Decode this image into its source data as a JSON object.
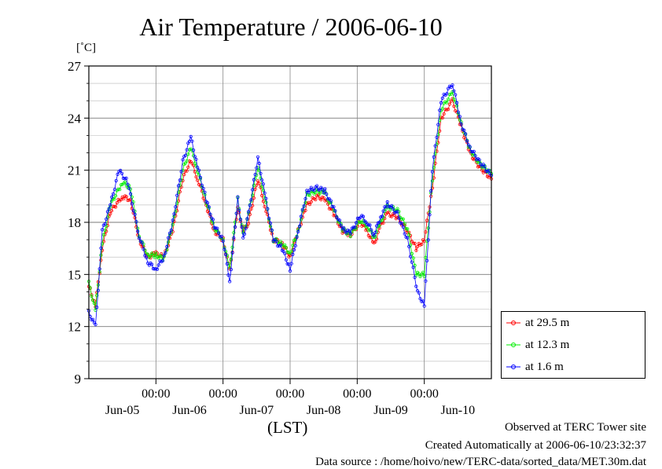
{
  "title": "Air Temperature / 2006-06-10",
  "footer": {
    "observed": "Observed at TERC Tower site",
    "created": "Created Automatically at 2006-06-10/23:32:37",
    "source": "Data source : /home/hoivo/new/TERC-data/sorted_data/MET.30m.dat"
  },
  "chart_data": {
    "type": "line",
    "title": "Air Temperature / 2006-06-10",
    "ylabel": "[˚C]",
    "xlabel": "(LST)",
    "ylim": [
      9,
      27
    ],
    "y_ticks": [
      9,
      12,
      15,
      18,
      21,
      24,
      27
    ],
    "xlim": [
      0,
      6
    ],
    "x_unit": "days since 2006-06-04 12:00 LST",
    "x_time_ticks": [
      {
        "x": 1,
        "label": "00:00"
      },
      {
        "x": 2,
        "label": "00:00"
      },
      {
        "x": 3,
        "label": "00:00"
      },
      {
        "x": 4,
        "label": "00:00"
      },
      {
        "x": 5,
        "label": "00:00"
      }
    ],
    "x_date_labels": [
      {
        "x": 0.5,
        "label": "Jun-05"
      },
      {
        "x": 1.5,
        "label": "Jun-06"
      },
      {
        "x": 2.5,
        "label": "Jun-07"
      },
      {
        "x": 3.5,
        "label": "Jun-08"
      },
      {
        "x": 4.5,
        "label": "Jun-09"
      },
      {
        "x": 5.5,
        "label": "Jun-10"
      }
    ],
    "grid": true,
    "legend_position": "right",
    "series": [
      {
        "name": "at 29.5 m",
        "color": "#ff0000",
        "points": [
          [
            0.0,
            14.3
          ],
          [
            0.1,
            13.2
          ],
          [
            0.2,
            16.5
          ],
          [
            0.32,
            18.6
          ],
          [
            0.5,
            19.5
          ],
          [
            0.62,
            19.3
          ],
          [
            0.75,
            17.0
          ],
          [
            0.88,
            16.0
          ],
          [
            1.0,
            16.2
          ],
          [
            1.12,
            16.0
          ],
          [
            1.25,
            17.5
          ],
          [
            1.4,
            20.5
          ],
          [
            1.52,
            21.6
          ],
          [
            1.62,
            20.5
          ],
          [
            1.75,
            19.0
          ],
          [
            1.87,
            17.5
          ],
          [
            2.0,
            17.0
          ],
          [
            2.1,
            15.2
          ],
          [
            2.22,
            18.8
          ],
          [
            2.3,
            17.5
          ],
          [
            2.38,
            18.0
          ],
          [
            2.52,
            20.5
          ],
          [
            2.62,
            19.0
          ],
          [
            2.75,
            17.0
          ],
          [
            2.88,
            16.8
          ],
          [
            3.0,
            16.0
          ],
          [
            3.12,
            17.5
          ],
          [
            3.25,
            19.0
          ],
          [
            3.4,
            19.5
          ],
          [
            3.52,
            19.3
          ],
          [
            3.65,
            18.5
          ],
          [
            3.78,
            17.5
          ],
          [
            3.9,
            17.3
          ],
          [
            4.05,
            18.0
          ],
          [
            4.15,
            17.5
          ],
          [
            4.25,
            16.7
          ],
          [
            4.35,
            17.8
          ],
          [
            4.45,
            18.5
          ],
          [
            4.6,
            18.3
          ],
          [
            4.75,
            17.5
          ],
          [
            4.88,
            16.5
          ],
          [
            5.0,
            17.0
          ],
          [
            5.12,
            20.0
          ],
          [
            5.25,
            24.0
          ],
          [
            5.42,
            25.0
          ],
          [
            5.55,
            23.5
          ],
          [
            5.68,
            22.0
          ],
          [
            5.82,
            21.2
          ],
          [
            6.0,
            20.5
          ]
        ]
      },
      {
        "name": "at 12.3 m",
        "color": "#00ee00",
        "points": [
          [
            0.0,
            14.5
          ],
          [
            0.1,
            12.9
          ],
          [
            0.2,
            16.8
          ],
          [
            0.32,
            19.0
          ],
          [
            0.5,
            20.3
          ],
          [
            0.62,
            20.0
          ],
          [
            0.75,
            17.2
          ],
          [
            0.88,
            16.1
          ],
          [
            1.0,
            16.1
          ],
          [
            1.12,
            15.9
          ],
          [
            1.25,
            17.8
          ],
          [
            1.4,
            21.0
          ],
          [
            1.52,
            22.3
          ],
          [
            1.62,
            21.0
          ],
          [
            1.75,
            19.2
          ],
          [
            1.87,
            17.7
          ],
          [
            2.0,
            17.0
          ],
          [
            2.1,
            15.3
          ],
          [
            2.22,
            19.3
          ],
          [
            2.3,
            17.3
          ],
          [
            2.38,
            18.5
          ],
          [
            2.52,
            21.2
          ],
          [
            2.62,
            19.5
          ],
          [
            2.75,
            17.0
          ],
          [
            2.88,
            16.8
          ],
          [
            3.0,
            16.2
          ],
          [
            3.12,
            17.5
          ],
          [
            3.25,
            19.6
          ],
          [
            3.4,
            19.8
          ],
          [
            3.52,
            19.7
          ],
          [
            3.65,
            18.7
          ],
          [
            3.78,
            17.6
          ],
          [
            3.9,
            17.3
          ],
          [
            4.05,
            18.1
          ],
          [
            4.15,
            17.8
          ],
          [
            4.25,
            17.1
          ],
          [
            4.35,
            18.0
          ],
          [
            4.45,
            18.9
          ],
          [
            4.6,
            18.7
          ],
          [
            4.75,
            17.6
          ],
          [
            4.88,
            15.0
          ],
          [
            5.0,
            15.0
          ],
          [
            5.12,
            20.5
          ],
          [
            5.25,
            24.5
          ],
          [
            5.42,
            25.5
          ],
          [
            5.55,
            23.7
          ],
          [
            5.68,
            22.2
          ],
          [
            5.82,
            21.4
          ],
          [
            6.0,
            20.8
          ]
        ]
      },
      {
        "name": "at 1.6 m",
        "color": "#0000ff",
        "points": [
          [
            0.0,
            12.8
          ],
          [
            0.1,
            12.0
          ],
          [
            0.2,
            17.5
          ],
          [
            0.32,
            19.0
          ],
          [
            0.45,
            21.0
          ],
          [
            0.58,
            20.3
          ],
          [
            0.75,
            17.2
          ],
          [
            0.88,
            15.7
          ],
          [
            1.0,
            15.3
          ],
          [
            1.12,
            16.0
          ],
          [
            1.25,
            18.0
          ],
          [
            1.4,
            21.5
          ],
          [
            1.52,
            22.9
          ],
          [
            1.62,
            21.2
          ],
          [
            1.75,
            19.3
          ],
          [
            1.87,
            17.8
          ],
          [
            2.0,
            17.0
          ],
          [
            2.1,
            14.6
          ],
          [
            2.22,
            19.4
          ],
          [
            2.3,
            17.0
          ],
          [
            2.38,
            18.5
          ],
          [
            2.52,
            21.7
          ],
          [
            2.62,
            19.7
          ],
          [
            2.75,
            17.0
          ],
          [
            2.88,
            16.5
          ],
          [
            3.0,
            15.3
          ],
          [
            3.12,
            17.5
          ],
          [
            3.25,
            19.8
          ],
          [
            3.4,
            20.0
          ],
          [
            3.52,
            19.8
          ],
          [
            3.65,
            18.8
          ],
          [
            3.78,
            17.6
          ],
          [
            3.9,
            17.4
          ],
          [
            4.05,
            18.4
          ],
          [
            4.15,
            18.0
          ],
          [
            4.25,
            17.3
          ],
          [
            4.35,
            18.3
          ],
          [
            4.45,
            19.1
          ],
          [
            4.6,
            18.5
          ],
          [
            4.75,
            17.0
          ],
          [
            4.9,
            14.0
          ],
          [
            5.0,
            13.2
          ],
          [
            5.12,
            21.0
          ],
          [
            5.25,
            25.0
          ],
          [
            5.42,
            26.0
          ],
          [
            5.55,
            23.7
          ],
          [
            5.68,
            22.3
          ],
          [
            5.82,
            21.5
          ],
          [
            6.0,
            20.7
          ]
        ]
      }
    ]
  }
}
